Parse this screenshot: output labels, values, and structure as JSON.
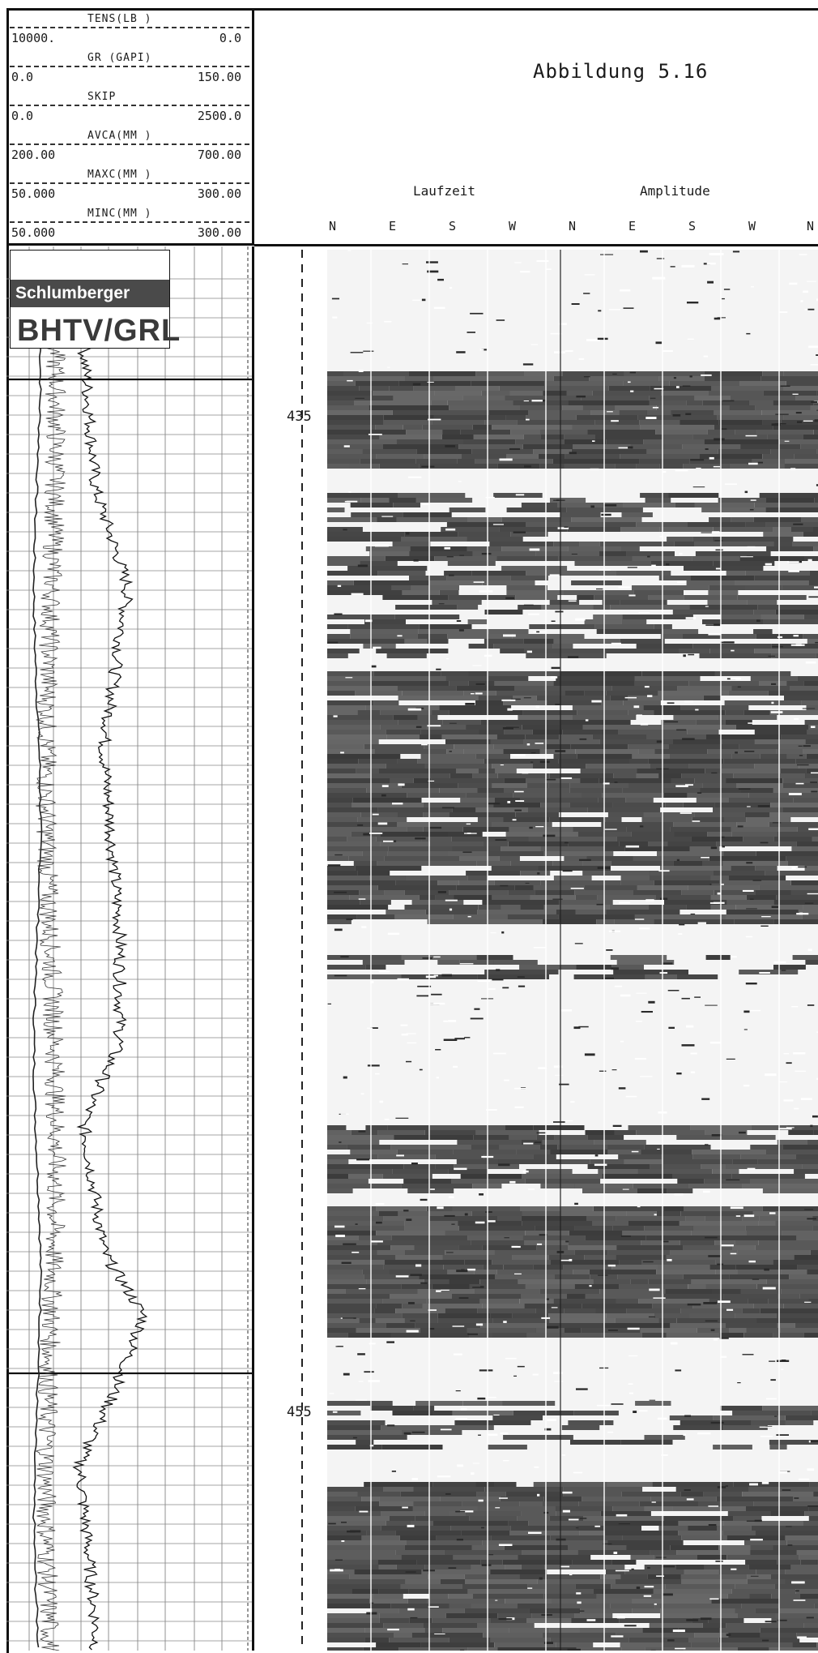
{
  "header": {
    "curves": [
      {
        "name": "TENS(LB  )",
        "min": "10000.",
        "max": "0.0"
      },
      {
        "name": "GR  (GAPI)",
        "min": "0.0",
        "max": "150.00"
      },
      {
        "name": "SKIP",
        "min": "0.0",
        "max": "2500.0"
      },
      {
        "name": "AVCA(MM  )",
        "min": "200.00",
        "max": "700.00"
      },
      {
        "name": "MAXC(MM  )",
        "min": "50.000",
        "max": "300.00"
      },
      {
        "name": "MINC(MM  )",
        "min": "50.000",
        "max": "300.00"
      }
    ],
    "title": "Abbildung 5.16",
    "subtitle_left": "Laufzeit",
    "subtitle_right": "Amplitude",
    "directions": [
      "N",
      "E",
      "S",
      "W",
      "N",
      "E",
      "S",
      "W",
      "N"
    ]
  },
  "logo": {
    "company": "Schlumberger",
    "tool": "BHTV/GRL"
  },
  "depth_labels": [
    "435",
    "455"
  ],
  "colors": {
    "ink": "#1a1a1a",
    "dark_band": "#3a3a3a",
    "logo_bar": "#4a4a4a",
    "paper": "#ffffff"
  }
}
